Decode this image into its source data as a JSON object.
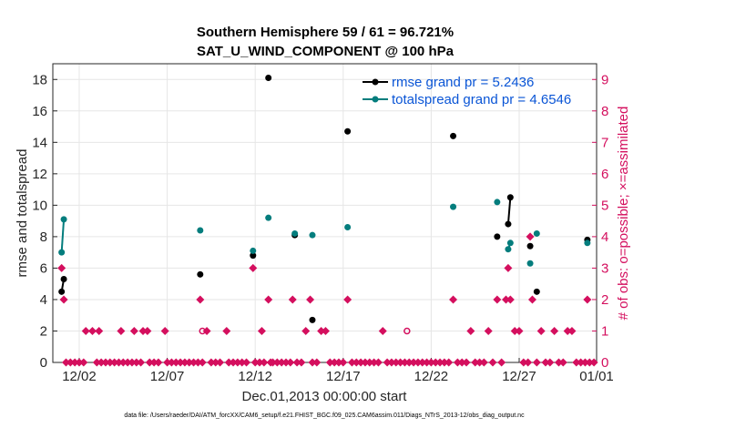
{
  "chart_data": {
    "type": "line",
    "title": "Southern Hemisphere 59 / 61 = 96.721%",
    "subtitle": "SAT_U_WIND_COMPONENT @ 100 hPa",
    "xlabel": "Dec.01,2013 00:00:00 start",
    "ylabel": "rmse and totalspread",
    "y2label": "# of obs: o=possible; ×=assimilated",
    "xlim": [
      0.5,
      31.4
    ],
    "ylim": [
      0,
      19
    ],
    "y2lim": [
      0,
      9.5
    ],
    "xticks": [
      {
        "x": 2,
        "label": "12/02"
      },
      {
        "x": 7,
        "label": "12/07"
      },
      {
        "x": 12,
        "label": "12/12"
      },
      {
        "x": 17,
        "label": "12/17"
      },
      {
        "x": 22,
        "label": "12/22"
      },
      {
        "x": 27,
        "label": "12/27"
      },
      {
        "x": 32,
        "label": "01/01"
      }
    ],
    "yticks": [
      0,
      2,
      4,
      6,
      8,
      10,
      12,
      14,
      16,
      18
    ],
    "y2ticks": [
      0,
      1,
      2,
      3,
      4,
      5,
      6,
      7,
      8,
      9
    ],
    "grid": true,
    "legend_position": "top-right",
    "series": [
      {
        "name": "rmse",
        "legend": "rmse grand pr = 5.2436",
        "color": "#000000",
        "points": [
          [
            1.0,
            4.5
          ],
          [
            1.125,
            5.3
          ],
          [
            8.875,
            5.6
          ],
          [
            11.875,
            6.8
          ],
          [
            12.75,
            18.1
          ],
          [
            14.25,
            8.1
          ],
          [
            15.25,
            2.7
          ],
          [
            17.25,
            14.7
          ],
          [
            23.25,
            14.4
          ],
          [
            25.75,
            8.0
          ],
          [
            26.375,
            8.8
          ],
          [
            26.5,
            10.5
          ],
          [
            27.625,
            7.4
          ],
          [
            28.0,
            4.5
          ],
          [
            30.875,
            7.8
          ]
        ],
        "segments": [
          [
            0,
            1
          ],
          [
            10,
            11
          ]
        ]
      },
      {
        "name": "totalspread",
        "legend": "totalspread grand pr = 4.6546",
        "color": "#047d7d",
        "points": [
          [
            1.0,
            7.0
          ],
          [
            1.125,
            9.1
          ],
          [
            8.875,
            8.4
          ],
          [
            11.875,
            7.1
          ],
          [
            12.75,
            9.2
          ],
          [
            14.25,
            8.2
          ],
          [
            15.25,
            8.1
          ],
          [
            17.25,
            8.6
          ],
          [
            23.25,
            9.9
          ],
          [
            25.75,
            10.2
          ],
          [
            26.375,
            7.2
          ],
          [
            26.5,
            7.6
          ],
          [
            27.625,
            6.3
          ],
          [
            28.0,
            8.2
          ],
          [
            30.875,
            7.6
          ]
        ],
        "segments": [
          [
            0,
            1
          ],
          [
            10,
            11
          ]
        ]
      }
    ],
    "obs": {
      "color": "#d40f5e",
      "assimilated": [
        [
          1,
          3
        ],
        [
          1.125,
          2
        ],
        [
          1.25,
          0
        ],
        [
          1.5,
          0
        ],
        [
          1.75,
          0
        ],
        [
          2,
          0
        ],
        [
          2.25,
          0
        ],
        [
          2.375,
          1
        ],
        [
          2.75,
          1
        ],
        [
          3.125,
          1
        ],
        [
          3,
          0
        ],
        [
          3.25,
          0
        ],
        [
          3.5,
          0
        ],
        [
          3.75,
          0
        ],
        [
          4,
          0
        ],
        [
          4.25,
          0
        ],
        [
          4.375,
          1
        ],
        [
          4.5,
          0
        ],
        [
          4.75,
          0
        ],
        [
          5,
          0
        ],
        [
          5.125,
          1
        ],
        [
          5.25,
          0
        ],
        [
          5.5,
          0
        ],
        [
          5.625,
          1
        ],
        [
          5.875,
          1
        ],
        [
          6,
          0
        ],
        [
          6.25,
          0
        ],
        [
          6.5,
          0
        ],
        [
          6.875,
          1
        ],
        [
          7,
          0
        ],
        [
          7.25,
          0
        ],
        [
          7.5,
          0
        ],
        [
          7.75,
          0
        ],
        [
          8,
          0
        ],
        [
          8.25,
          0
        ],
        [
          8.5,
          0
        ],
        [
          8.875,
          2
        ],
        [
          8.75,
          0
        ],
        [
          9,
          0
        ],
        [
          9.25,
          1
        ],
        [
          9.5,
          0
        ],
        [
          9.75,
          0
        ],
        [
          10,
          0
        ],
        [
          10.375,
          1
        ],
        [
          10.5,
          0
        ],
        [
          10.75,
          0
        ],
        [
          11,
          0
        ],
        [
          11.25,
          0
        ],
        [
          11.5,
          0
        ],
        [
          11.875,
          3
        ],
        [
          12,
          0
        ],
        [
          12.375,
          1
        ],
        [
          12.25,
          0
        ],
        [
          12.5,
          0
        ],
        [
          12.75,
          2
        ],
        [
          12.875,
          0
        ],
        [
          13,
          0
        ],
        [
          13.25,
          0
        ],
        [
          13.5,
          0
        ],
        [
          13.75,
          0
        ],
        [
          14.125,
          2
        ],
        [
          14,
          0
        ],
        [
          14.375,
          0
        ],
        [
          14.625,
          0
        ],
        [
          14.875,
          1
        ],
        [
          15.125,
          2
        ],
        [
          15.25,
          0
        ],
        [
          15.5,
          0
        ],
        [
          15.75,
          1
        ],
        [
          16,
          1
        ],
        [
          16.25,
          0
        ],
        [
          16.5,
          0
        ],
        [
          16.75,
          0
        ],
        [
          17,
          0
        ],
        [
          17.25,
          2
        ],
        [
          17.5,
          0
        ],
        [
          17.75,
          0
        ],
        [
          18,
          0
        ],
        [
          18.25,
          0
        ],
        [
          18.5,
          0
        ],
        [
          18.75,
          0
        ],
        [
          19,
          0
        ],
        [
          19.25,
          1
        ],
        [
          19.5,
          0
        ],
        [
          19.75,
          0
        ],
        [
          20,
          0
        ],
        [
          20.25,
          0
        ],
        [
          20.5,
          0
        ],
        [
          20.75,
          0
        ],
        [
          21,
          0
        ],
        [
          21.25,
          0
        ],
        [
          21.5,
          0
        ],
        [
          21.75,
          0
        ],
        [
          22,
          0
        ],
        [
          22.25,
          0
        ],
        [
          22.5,
          0
        ],
        [
          22.75,
          0
        ],
        [
          23,
          0
        ],
        [
          23.25,
          2
        ],
        [
          23.5,
          0
        ],
        [
          23.75,
          0
        ],
        [
          24,
          0
        ],
        [
          24.25,
          1
        ],
        [
          24.5,
          0
        ],
        [
          24.75,
          0
        ],
        [
          25,
          0
        ],
        [
          25.25,
          1
        ],
        [
          25.5,
          0
        ],
        [
          25.75,
          2
        ],
        [
          26,
          0
        ],
        [
          26.25,
          2
        ],
        [
          26.375,
          3
        ],
        [
          26.5,
          2
        ],
        [
          26.75,
          1
        ],
        [
          27,
          1
        ],
        [
          27.25,
          0
        ],
        [
          27.5,
          0
        ],
        [
          27.625,
          4
        ],
        [
          27.75,
          2
        ],
        [
          28,
          0
        ],
        [
          28.25,
          1
        ],
        [
          28.5,
          0
        ],
        [
          28.75,
          0
        ],
        [
          29,
          1
        ],
        [
          29.25,
          0
        ],
        [
          29.5,
          0
        ],
        [
          29.75,
          1
        ],
        [
          30,
          1
        ],
        [
          30.25,
          0
        ],
        [
          30.5,
          0
        ],
        [
          30.875,
          2
        ],
        [
          30.75,
          0
        ],
        [
          31,
          0
        ],
        [
          31.25,
          0
        ]
      ],
      "possible_only": [
        [
          9.0,
          1
        ],
        [
          20.625,
          1
        ]
      ]
    },
    "footnote": "data file: /Users/raeder/DAI/ATM_forcXX/CAM6_setup/f.e21.FHIST_BGC.f09_025.CAM6assim.011/Diags_NTrS_2013-12/obs_diag_output.nc"
  }
}
